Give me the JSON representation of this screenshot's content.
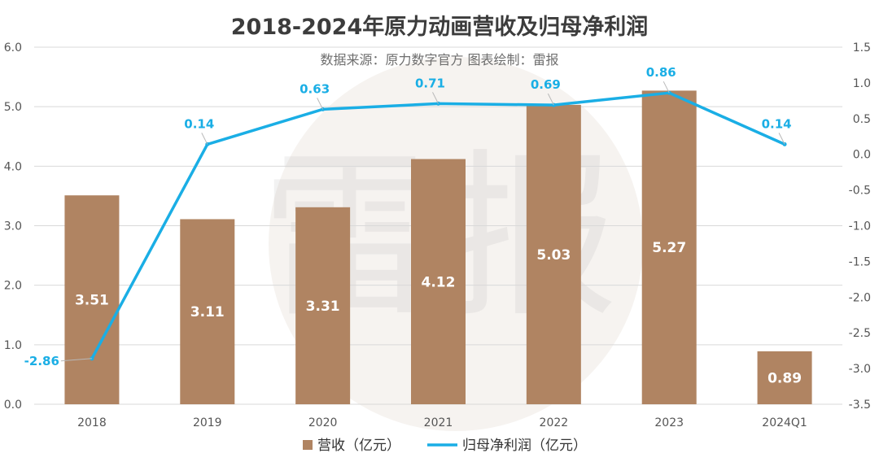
{
  "chart_data": {
    "type": "bar",
    "title": "2018-2024年原力动画营收及归母净利润",
    "subtitle": "数据来源：原力数字官方  图表绘制：雷报",
    "watermark": "雷报",
    "categories": [
      "2018",
      "2019",
      "2020",
      "2021",
      "2022",
      "2023",
      "2024Q1"
    ],
    "series": [
      {
        "name": "营收（亿元）",
        "type": "bar",
        "axis": "left",
        "color": "#b08462",
        "values": [
          3.51,
          3.11,
          3.31,
          4.12,
          5.03,
          5.27,
          0.89
        ]
      },
      {
        "name": "归母净利润（亿元）",
        "type": "line",
        "axis": "right",
        "color": "#1aaee5",
        "values": [
          -2.86,
          0.14,
          0.63,
          0.71,
          0.69,
          0.86,
          0.14
        ]
      }
    ],
    "bar_value_labels": [
      "3.51",
      "3.11",
      "3.31",
      "4.12",
      "5.03",
      "5.27",
      "0.89"
    ],
    "line_value_labels": [
      "-2.86",
      "0.14",
      "0.63",
      "0.71",
      "0.69",
      "0.86",
      "0.14"
    ],
    "y_left": {
      "lim": [
        0,
        6
      ],
      "ticks": [
        0,
        1,
        2,
        3,
        4,
        5,
        6
      ],
      "tick_labels": [
        "0.0",
        "1.0",
        "2.0",
        "3.0",
        "4.0",
        "5.0",
        "6.0"
      ]
    },
    "y_right": {
      "lim": [
        -3.5,
        1.5
      ],
      "ticks": [
        -3.5,
        -3.0,
        -2.5,
        -2.0,
        -1.5,
        -1.0,
        -0.5,
        0.0,
        0.5,
        1.0,
        1.5
      ],
      "tick_labels": [
        "-3.5",
        "-3.0",
        "-2.5",
        "-2.0",
        "-1.5",
        "-1.0",
        "-0.5",
        "0.0",
        "0.5",
        "1.0",
        "1.5"
      ]
    },
    "grid": true,
    "legend_position": "bottom"
  }
}
